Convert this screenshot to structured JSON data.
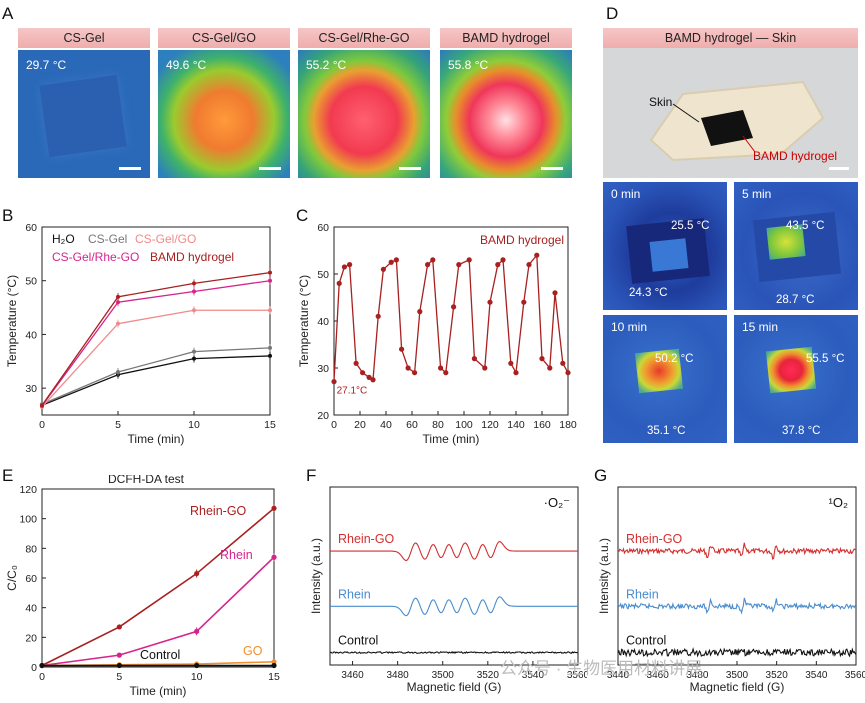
{
  "panel_labels": {
    "A": "A",
    "B": "B",
    "C": "C",
    "D": "D",
    "E": "E",
    "F": "F",
    "G": "G"
  },
  "panelA": [
    {
      "title": "CS-Gel",
      "temp": "29.7 °C"
    },
    {
      "title": "CS-Gel/GO",
      "temp": "49.6 °C"
    },
    {
      "title": "CS-Gel/Rhe-GO",
      "temp": "55.2 °C"
    },
    {
      "title": "BAMD hydrogel",
      "temp": "55.8 °C"
    }
  ],
  "panelD": {
    "title": "BAMD hydrogel — Skin",
    "skin_label": "Skin",
    "hydrogel_label": "BAMD hydrogel",
    "ir": [
      {
        "time": "0 min",
        "t_hi": "25.5 °C",
        "t_lo": "24.3 °C"
      },
      {
        "time": "5 min",
        "t_hi": "43.5 °C",
        "t_lo": "28.7 °C"
      },
      {
        "time": "10 min",
        "t_hi": "50.2 °C",
        "t_lo": "35.1 °C"
      },
      {
        "time": "15 min",
        "t_hi": "55.5 °C",
        "t_lo": "37.8 °C"
      }
    ]
  },
  "watermark": "公众号 · 生物医用材料讲展",
  "chart_data": [
    {
      "id": "B",
      "type": "line",
      "xlabel": "Time (min)",
      "ylabel": "Temperature (°C)",
      "x": [
        0,
        5,
        10,
        15
      ],
      "xlim": [
        0,
        15
      ],
      "ylim": [
        25,
        60
      ],
      "xticks": [
        0,
        5,
        10,
        15
      ],
      "yticks": [
        30,
        40,
        50,
        60
      ],
      "series": [
        {
          "name": "H₂O",
          "color": "#111111",
          "values": [
            26.8,
            32.5,
            35.5,
            36.0
          ]
        },
        {
          "name": "CS-Gel",
          "color": "#777777",
          "values": [
            27.0,
            33.0,
            36.8,
            37.5
          ]
        },
        {
          "name": "CS-Gel/GO",
          "color": "#f08a8a",
          "values": [
            26.5,
            42.0,
            44.5,
            44.5
          ]
        },
        {
          "name": "CS-Gel/Rhe-GO",
          "color": "#d6248c",
          "values": [
            26.7,
            46.0,
            48.0,
            50.0
          ]
        },
        {
          "name": "BAMD hydrogel",
          "color": "#a82020",
          "values": [
            26.8,
            47.0,
            49.5,
            51.5
          ]
        }
      ]
    },
    {
      "id": "C",
      "type": "line",
      "xlabel": "Time (min)",
      "ylabel": "Temperature (°C)",
      "xlim": [
        0,
        180
      ],
      "ylim": [
        20,
        60
      ],
      "xticks": [
        0,
        20,
        40,
        60,
        80,
        100,
        120,
        140,
        160,
        180
      ],
      "yticks": [
        20,
        30,
        40,
        50,
        60
      ],
      "annotation": "27.1°C",
      "series": [
        {
          "name": "BAMD hydrogel",
          "color": "#a82020",
          "x": [
            0,
            4,
            8,
            12,
            17,
            22,
            27,
            30,
            34,
            38,
            44,
            48,
            52,
            57,
            62,
            66,
            72,
            76,
            82,
            86,
            92,
            96,
            104,
            108,
            116,
            120,
            126,
            130,
            136,
            140,
            146,
            150,
            156,
            160,
            166,
            170,
            176,
            180
          ],
          "values": [
            27.1,
            48,
            51.5,
            52,
            31,
            29,
            28,
            27.5,
            41,
            51,
            52.5,
            53,
            34,
            30,
            29,
            42,
            52,
            53,
            30,
            29,
            43,
            52,
            53,
            32,
            30,
            44,
            52,
            53,
            31,
            29,
            44,
            52,
            54,
            32,
            30,
            46,
            31,
            29
          ]
        }
      ]
    },
    {
      "id": "E",
      "type": "line",
      "title": "DCFH-DA test",
      "xlabel": "Time (min)",
      "ylabel": "C/C₀",
      "x": [
        0,
        5,
        10,
        15
      ],
      "xlim": [
        0,
        15
      ],
      "ylim": [
        0,
        120
      ],
      "xticks": [
        0,
        5,
        10,
        15
      ],
      "yticks": [
        0,
        20,
        40,
        60,
        80,
        100,
        120
      ],
      "series": [
        {
          "name": "Rhein-GO",
          "color": "#a82020",
          "values": [
            1,
            27,
            63,
            107
          ]
        },
        {
          "name": "Rhein",
          "color": "#d6248c",
          "values": [
            1,
            8,
            24,
            74
          ]
        },
        {
          "name": "GO",
          "color": "#f09030",
          "values": [
            1,
            1.5,
            2,
            3.5
          ]
        },
        {
          "name": "Control",
          "color": "#111111",
          "values": [
            1,
            1,
            1,
            1
          ]
        }
      ]
    },
    {
      "id": "F",
      "type": "line",
      "title": "·O₂⁻",
      "xlabel": "Magnetic field (G)",
      "ylabel": "Intensity (a.u.)",
      "xlim": [
        3450,
        3560
      ],
      "xticks": [
        3460,
        3480,
        3500,
        3520,
        3540,
        3560
      ],
      "series": [
        {
          "name": "Rhein-GO",
          "color": "#d32f2f"
        },
        {
          "name": "Rhein",
          "color": "#4a8ccc"
        },
        {
          "name": "Control",
          "color": "#111111"
        }
      ]
    },
    {
      "id": "G",
      "type": "line",
      "title": "¹O₂",
      "xlabel": "Magnetic field (G)",
      "ylabel": "Intensity (a.u.)",
      "xlim": [
        3440,
        3560
      ],
      "xticks": [
        3440,
        3460,
        3480,
        3500,
        3520,
        3540,
        3560
      ],
      "series": [
        {
          "name": "Rhein-GO",
          "color": "#d32f2f"
        },
        {
          "name": "Rhein",
          "color": "#4a8ccc"
        },
        {
          "name": "Control",
          "color": "#111111"
        }
      ]
    }
  ]
}
